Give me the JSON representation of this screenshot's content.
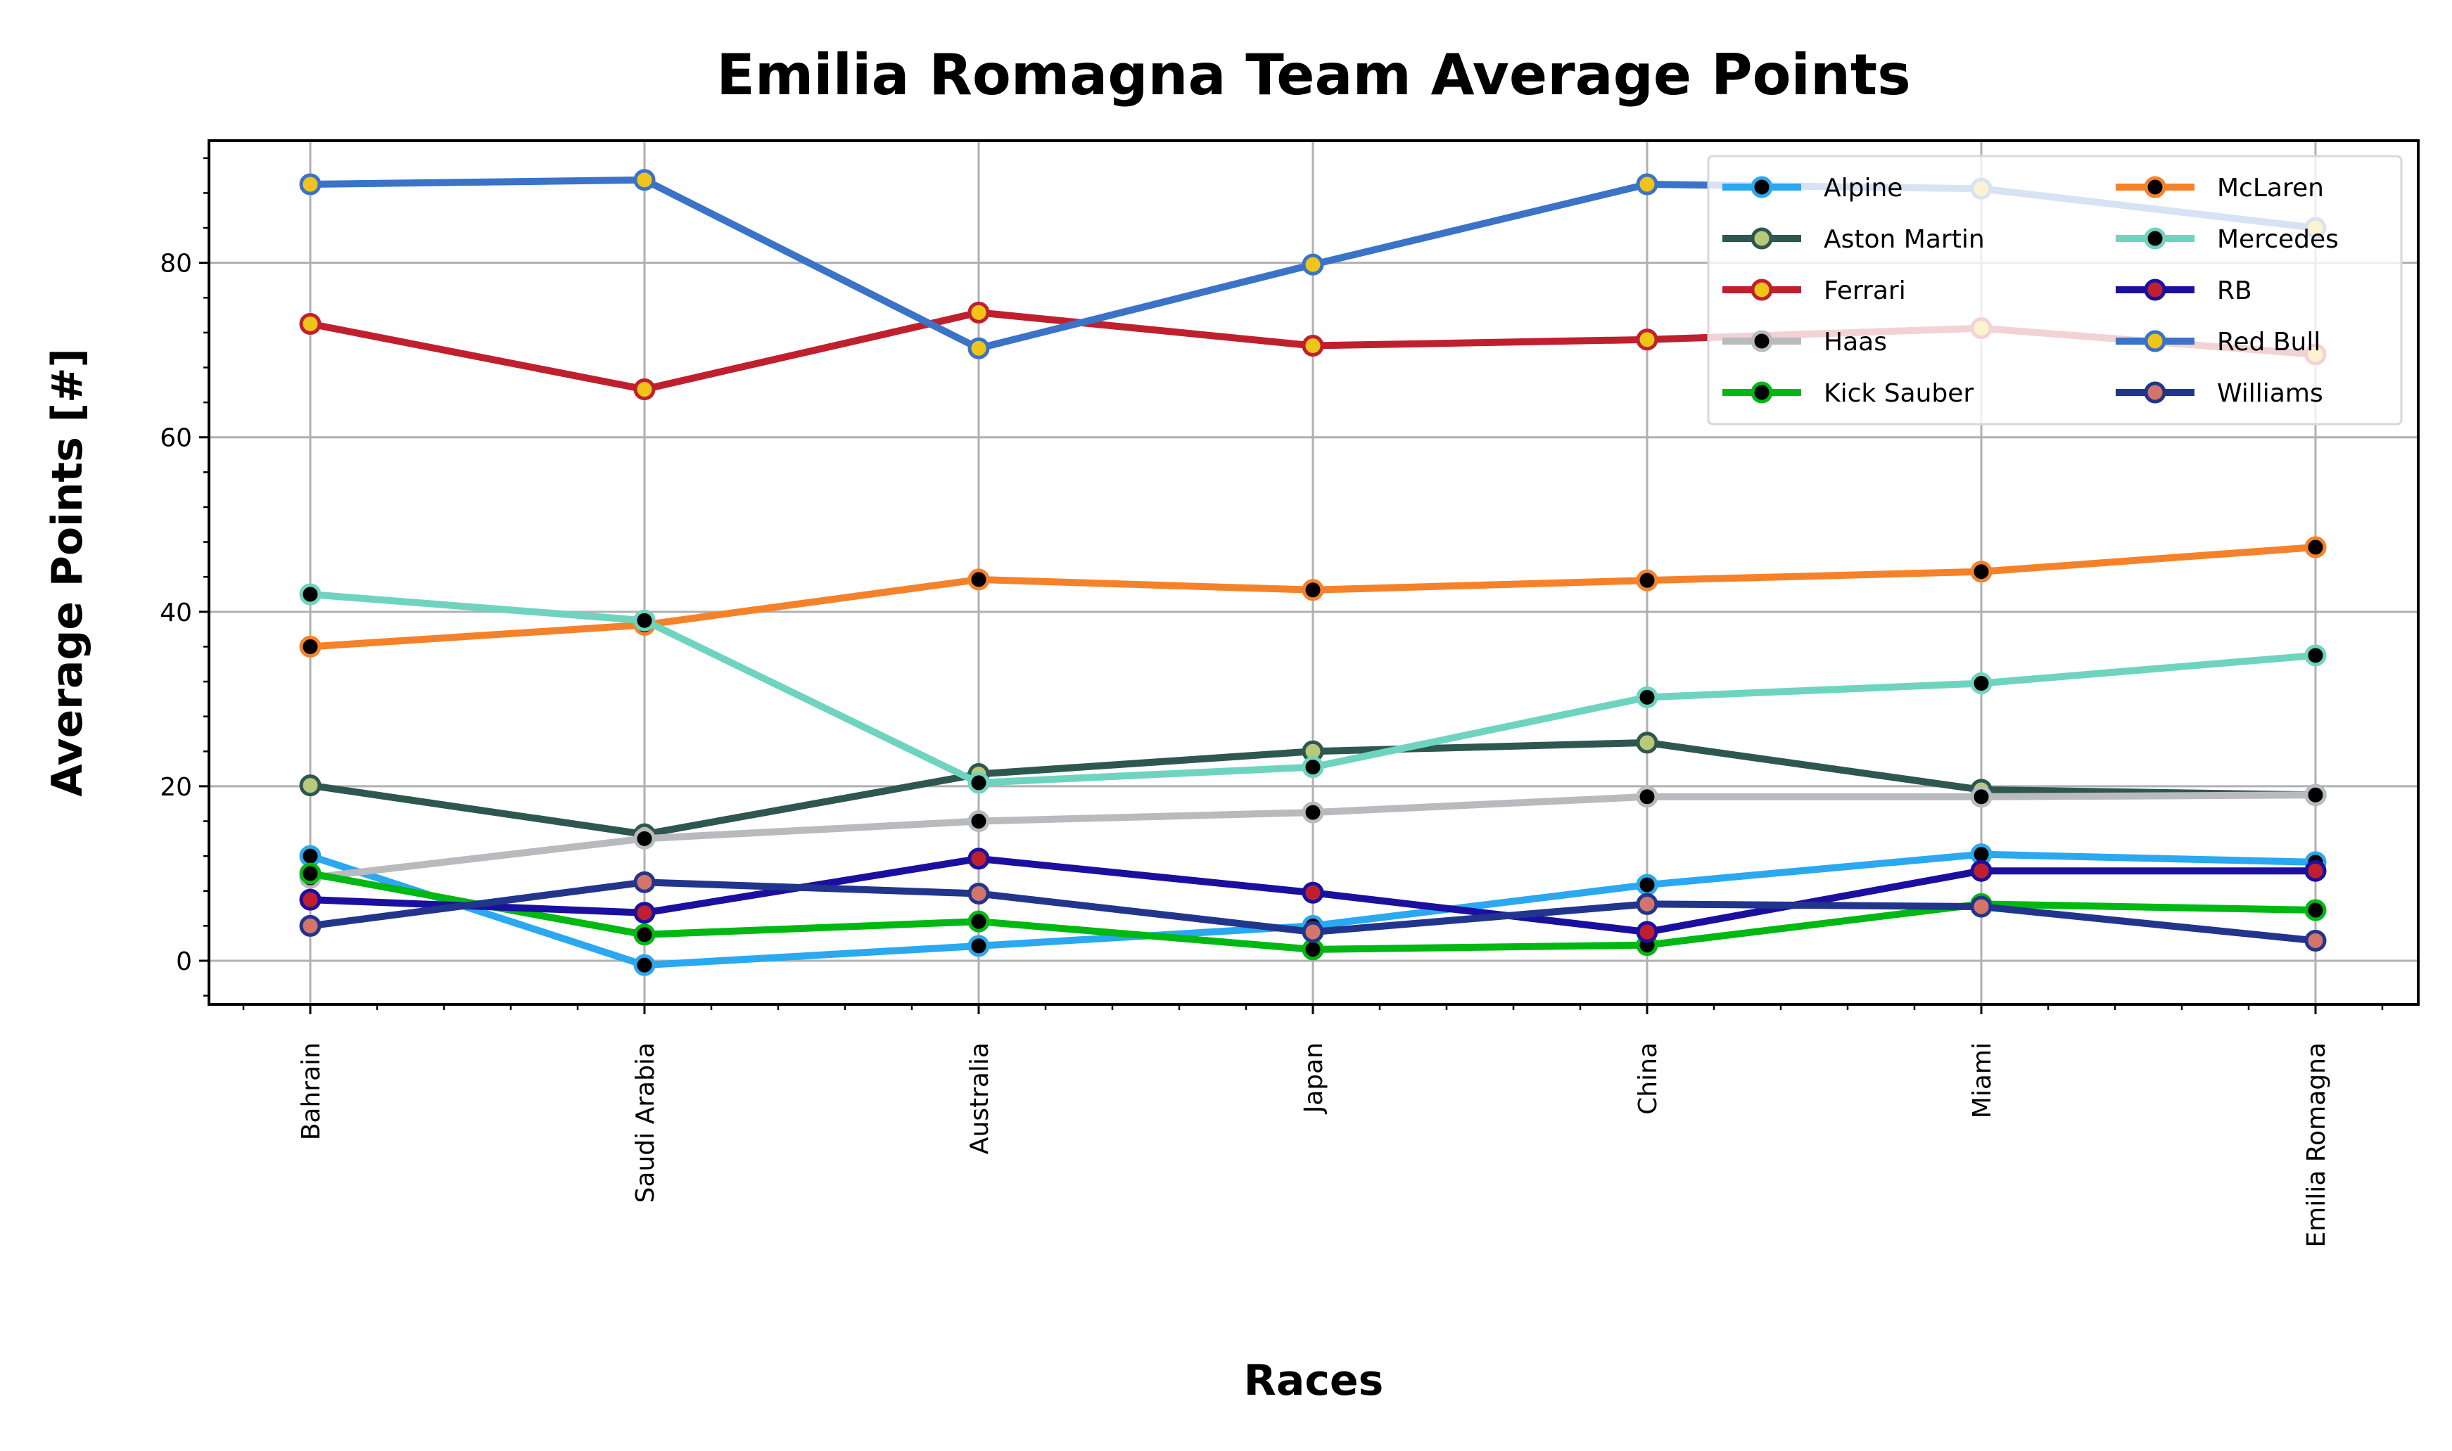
{
  "chart_data": {
    "type": "line",
    "title": "Emilia Romagna Team Average Points",
    "xlabel": "Races",
    "ylabel": "Average Points [#]",
    "categories": [
      "Bahrain",
      "Saudi Arabia",
      "Australia",
      "Japan",
      "China",
      "Miami",
      "Emilia Romagna"
    ],
    "yticks": [
      "0",
      "20",
      "40",
      "60",
      "80"
    ],
    "ylim": [
      -5,
      94
    ],
    "grid": true,
    "legend_position": "top-right",
    "legend_columns": 2,
    "series": [
      {
        "name": "Alpine",
        "color": "#2aa8f0",
        "marker_fill": "#000000",
        "marker_edge": "#2aa8f0",
        "values": [
          12,
          -0.5,
          1.7,
          4,
          8.7,
          12.2,
          11.3
        ]
      },
      {
        "name": "Aston Martin",
        "color": "#2e5750",
        "marker_fill": "#b8c97a",
        "marker_edge": "#2e5750",
        "values": [
          20.1,
          14.5,
          21.4,
          24,
          25,
          19.6,
          19
        ]
      },
      {
        "name": "Ferrari",
        "color": "#c0202e",
        "marker_fill": "#f0c419",
        "marker_edge": "#c0202e",
        "values": [
          73,
          65.5,
          74.3,
          70.5,
          71.2,
          72.5,
          69.5
        ]
      },
      {
        "name": "Haas",
        "color": "#b8babd",
        "marker_fill": "#000000",
        "marker_edge": "#b8babd",
        "values": [
          9.5,
          14,
          16,
          17,
          18.8,
          18.8,
          19
        ]
      },
      {
        "name": "Kick Sauber",
        "color": "#00b812",
        "marker_fill": "#000000",
        "marker_edge": "#00b812",
        "values": [
          10,
          3,
          4.5,
          1.3,
          1.8,
          6.5,
          5.8
        ]
      },
      {
        "name": "McLaren",
        "color": "#f5822a",
        "marker_fill": "#000000",
        "marker_edge": "#f5822a",
        "values": [
          36,
          38.5,
          43.7,
          42.5,
          43.6,
          44.6,
          47.4
        ]
      },
      {
        "name": "Mercedes",
        "color": "#6fd4bf",
        "marker_fill": "#000000",
        "marker_edge": "#6fd4bf",
        "values": [
          42,
          39,
          20.4,
          22.2,
          30.2,
          31.8,
          35
        ]
      },
      {
        "name": "RB",
        "color": "#1b0fa0",
        "marker_fill": "#c0202e",
        "marker_edge": "#1b0fa0",
        "values": [
          7,
          5.5,
          11.7,
          7.8,
          3.3,
          10.3,
          10.3
        ]
      },
      {
        "name": "Red Bull",
        "color": "#3a73c8",
        "marker_fill": "#f0c419",
        "marker_edge": "#3a73c8",
        "values": [
          89,
          89.5,
          70.2,
          79.8,
          89,
          88.5,
          84
        ]
      },
      {
        "name": "Williams",
        "color": "#22358c",
        "marker_fill": "#d4756b",
        "marker_edge": "#22358c",
        "values": [
          4,
          9,
          7.7,
          3.3,
          6.5,
          6.2,
          2.3
        ]
      }
    ]
  }
}
